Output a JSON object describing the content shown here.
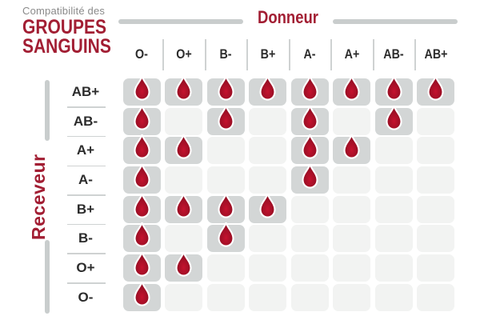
{
  "title": {
    "eyebrow": "Compatibilité des",
    "line1": "GROUPES",
    "line2": "SANGUINS"
  },
  "axes": {
    "donor_label": "Donneur",
    "receiver_label": "Receveur"
  },
  "legend": {
    "compatible_icon": "blood-drop-icon",
    "compatible_meaning": "1 = compatible (blood drop shown), 0 = incompatible (empty cell)"
  },
  "colors": {
    "accent_red": "#a21e33",
    "drop_red_center": "#c5122e",
    "drop_red_edge": "#8e0e22",
    "drop_outline": "#ffffff",
    "cell_active": "#d3d6d6",
    "cell_inactive": "#f2f3f2",
    "line_gray": "#c9cdcd",
    "label_dark": "#2c2c2c",
    "eyebrow_gray": "#8a8a8a"
  },
  "chart_data": {
    "type": "heatmap",
    "title": "Compatibilité des GROUPES SANGUINS",
    "xlabel": "Donneur",
    "ylabel": "Receveur",
    "categories_x": [
      "O-",
      "O+",
      "B-",
      "B+",
      "A-",
      "A+",
      "AB-",
      "AB+"
    ],
    "categories_y": [
      "AB+",
      "AB-",
      "A+",
      "A-",
      "B+",
      "B-",
      "O+",
      "O-"
    ],
    "matrix": [
      [
        1,
        1,
        1,
        1,
        1,
        1,
        1,
        1
      ],
      [
        1,
        0,
        1,
        0,
        1,
        0,
        1,
        0
      ],
      [
        1,
        1,
        0,
        0,
        1,
        1,
        0,
        0
      ],
      [
        1,
        0,
        0,
        0,
        1,
        0,
        0,
        0
      ],
      [
        1,
        1,
        1,
        1,
        0,
        0,
        0,
        0
      ],
      [
        1,
        0,
        1,
        0,
        0,
        0,
        0,
        0
      ],
      [
        1,
        1,
        0,
        0,
        0,
        0,
        0,
        0
      ],
      [
        1,
        0,
        0,
        0,
        0,
        0,
        0,
        0
      ]
    ],
    "legend_position": "none",
    "grid": false
  }
}
